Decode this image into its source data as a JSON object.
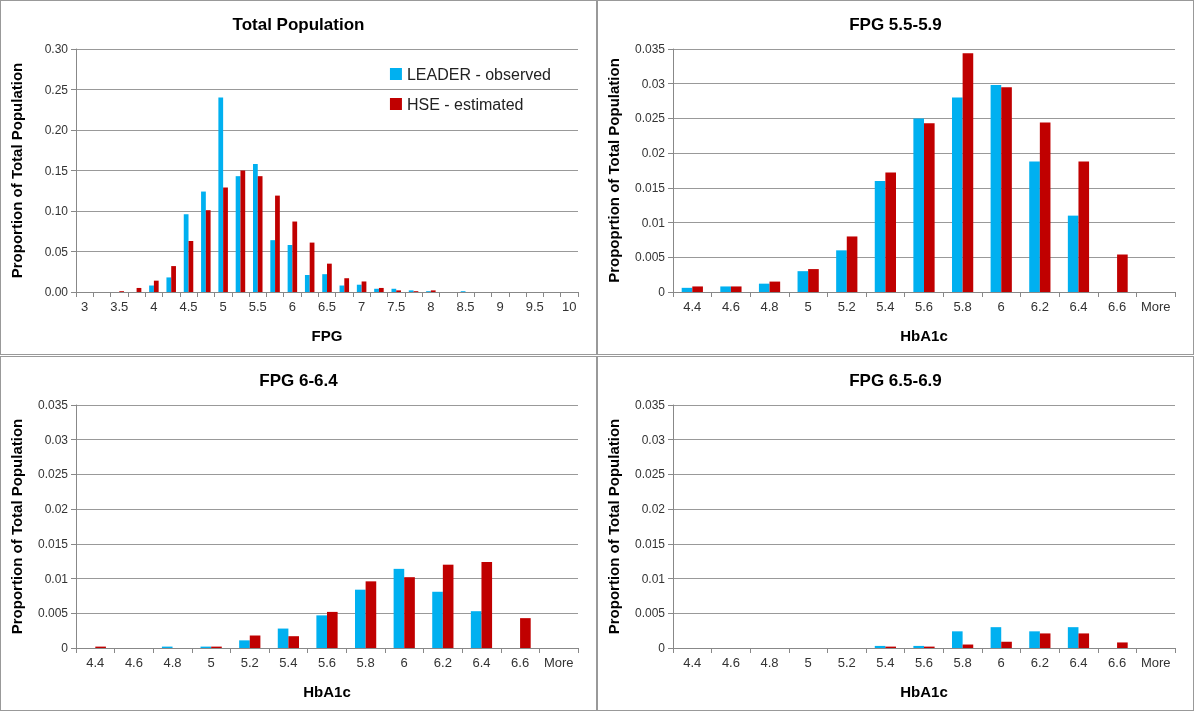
{
  "chart_data": [
    {
      "type": "bar",
      "title": "Total Population",
      "xlabel": "FPG",
      "ylabel": "Proportion of Total Population",
      "categories": [
        "3",
        null,
        "3.5",
        null,
        "4",
        null,
        "4.5",
        null,
        "5",
        null,
        "5.5",
        null,
        "6",
        null,
        "6.5",
        null,
        "7",
        null,
        "7.5",
        null,
        "8",
        null,
        "8.5",
        null,
        "9",
        null,
        "9.5",
        null,
        "10"
      ],
      "series": [
        {
          "name": "LEADER - observed",
          "color": "#00b0f0",
          "values": [
            0,
            0,
            0,
            0,
            0.008,
            0.018,
            0.096,
            0.124,
            0.24,
            0.143,
            0.158,
            0.064,
            0.058,
            0.021,
            0.022,
            0.008,
            0.009,
            0.004,
            0.004,
            0.002,
            0.001,
            0,
            0.001,
            0,
            0,
            0,
            0,
            0,
            0
          ]
        },
        {
          "name": "HSE - estimated",
          "color": "#c00000",
          "values": [
            0,
            0,
            0.001,
            0.005,
            0.014,
            0.032,
            0.063,
            0.101,
            0.129,
            0.15,
            0.143,
            0.119,
            0.087,
            0.061,
            0.035,
            0.017,
            0.013,
            0.005,
            0.002,
            0.001,
            0.002,
            0,
            0,
            0,
            0,
            0,
            0,
            0,
            0
          ]
        }
      ],
      "ylim": [
        0,
        0.3
      ],
      "yticks": [
        {
          "value": 0,
          "label": "0.00"
        },
        {
          "value": 0.05,
          "label": "0.05"
        },
        {
          "value": 0.1,
          "label": "0.10"
        },
        {
          "value": 0.15,
          "label": "0.15"
        },
        {
          "value": 0.2,
          "label": "0.20"
        },
        {
          "value": 0.25,
          "label": "0.25"
        },
        {
          "value": 0.3,
          "label": "0.30"
        }
      ],
      "grid": "y",
      "legend": "top right"
    },
    {
      "type": "bar",
      "title": "FPG 5.5-5.9",
      "xlabel": "HbA1c",
      "ylabel": "Propoprtion of Total Population",
      "categories": [
        "4.4",
        "4.6",
        "4.8",
        "5",
        "5.2",
        "5.4",
        "5.6",
        "5.8",
        "6",
        "6.2",
        "6.4",
        "6.6",
        "More"
      ],
      "series": [
        {
          "color": "#00b0f0",
          "values": [
            0.0006,
            0.0008,
            0.0012,
            0.003,
            0.006,
            0.016,
            0.025,
            0.028,
            0.0298,
            0.0188,
            0.011,
            0,
            0
          ]
        },
        {
          "color": "#c00000",
          "values": [
            0.0008,
            0.0008,
            0.0015,
            0.0033,
            0.008,
            0.0172,
            0.0243,
            0.0344,
            0.0295,
            0.0244,
            0.0188,
            0.0054,
            0
          ]
        }
      ],
      "ylim": [
        0,
        0.035
      ],
      "yticks": [
        0,
        0.005,
        0.01,
        0.015,
        0.02,
        0.025,
        0.03,
        0.035
      ],
      "grid": "y"
    },
    {
      "type": "bar",
      "title": "FPG 6-6.4",
      "xlabel": "HbA1c",
      "ylabel": "Proportion of Total Population",
      "categories": [
        "4.4",
        "4.6",
        "4.8",
        "5",
        "5.2",
        "5.4",
        "5.6",
        "5.8",
        "6",
        "6.2",
        "6.4",
        "6.6",
        "More"
      ],
      "series": [
        {
          "color": "#00b0f0",
          "values": [
            0,
            0,
            0.0002,
            0.0002,
            0.0011,
            0.0028,
            0.0047,
            0.0084,
            0.0114,
            0.0081,
            0.0053,
            0,
            0
          ]
        },
        {
          "color": "#c00000",
          "values": [
            0.0002,
            0,
            0,
            0.0002,
            0.0018,
            0.0017,
            0.0052,
            0.0096,
            0.0102,
            0.012,
            0.0124,
            0.0043,
            0
          ]
        }
      ],
      "ylim": [
        0,
        0.035
      ],
      "yticks": [
        0,
        0.005,
        0.01,
        0.015,
        0.02,
        0.025,
        0.03,
        0.035
      ],
      "grid": "y"
    },
    {
      "type": "bar",
      "title": "FPG 6.5-6.9",
      "xlabel": "HbA1c",
      "ylabel": "Proportion of Total Population",
      "categories": [
        "4.4",
        "4.6",
        "4.8",
        "5",
        "5.2",
        "5.4",
        "5.6",
        "5.8",
        "6",
        "6.2",
        "6.4",
        "6.6",
        "More"
      ],
      "series": [
        {
          "color": "#00b0f0",
          "values": [
            0,
            0,
            0,
            0,
            0,
            0.0003,
            0.0003,
            0.0024,
            0.003,
            0.0024,
            0.003,
            0,
            0
          ]
        },
        {
          "color": "#c00000",
          "values": [
            0,
            0,
            0,
            0,
            0,
            0.0002,
            0.0002,
            0.0005,
            0.0009,
            0.0021,
            0.0021,
            0.0008,
            0
          ]
        }
      ],
      "ylim": [
        0,
        0.035
      ],
      "yticks": [
        0,
        0.005,
        0.01,
        0.015,
        0.02,
        0.025,
        0.03,
        0.035
      ],
      "grid": "y"
    }
  ]
}
